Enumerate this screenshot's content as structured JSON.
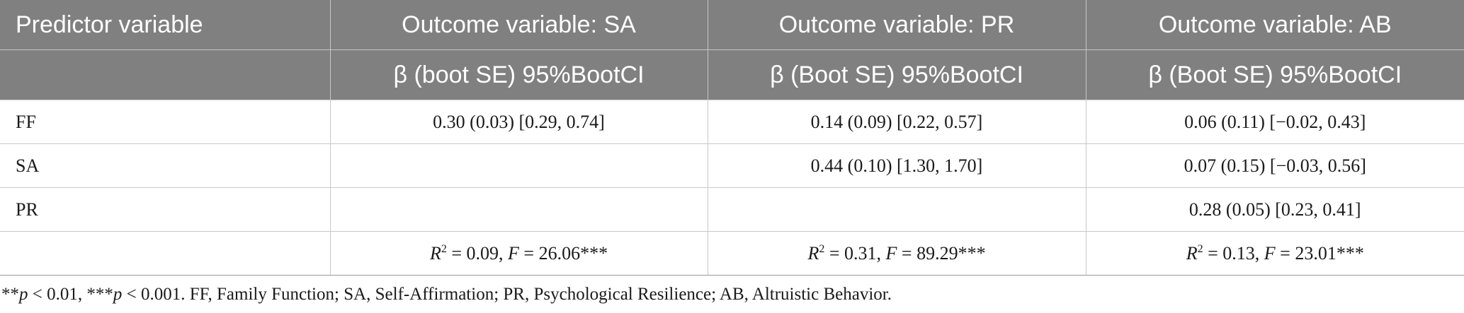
{
  "header": {
    "row1": [
      "Predictor variable",
      "Outcome variable: SA",
      "Outcome variable: PR",
      "Outcome variable: AB"
    ],
    "row2": [
      "",
      "β (boot SE) 95%BootCI",
      "β (Boot SE) 95%BootCI",
      "β (Boot SE) 95%BootCI"
    ]
  },
  "rows": [
    {
      "label": "FF",
      "sa": "0.30 (0.03) [0.29, 0.74]",
      "pr": "0.14 (0.09) [0.22, 0.57]",
      "ab": "0.06 (0.11) [−0.02, 0.43]"
    },
    {
      "label": "SA",
      "sa": "",
      "pr": "0.44 (0.10) [1.30, 1.70]",
      "ab": "0.07 (0.15) [−0.03, 0.56]"
    },
    {
      "label": "PR",
      "sa": "",
      "pr": "",
      "ab": "0.28 (0.05) [0.23, 0.41]"
    }
  ],
  "fit": {
    "sa": {
      "r2": "0.09",
      "f": "26.06***"
    },
    "pr": {
      "r2": "0.31",
      "f": "89.29***"
    },
    "ab": {
      "r2": "0.13",
      "f": "23.01***"
    }
  },
  "footnote": {
    "p1_stars": "**",
    "p1_text": " < 0.01, ",
    "p2_stars": "***",
    "p2_text": " < 0.001. FF, Family Function; SA, Self-Affirmation; PR, Psychological Resilience; AB, Altruistic Behavior."
  }
}
